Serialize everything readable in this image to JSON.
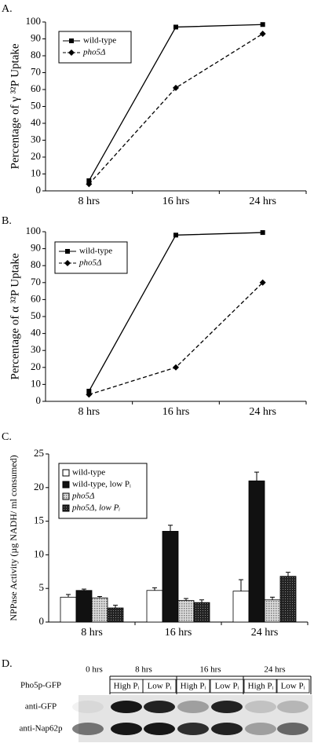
{
  "chart_data": [
    {
      "type": "line",
      "title": "A.",
      "y_label": "Percentage of γ ³²P Uptake",
      "categories": [
        "8 hrs",
        "16 hrs",
        "24 hrs"
      ],
      "series": [
        {
          "name": "wild-type",
          "color": "#000000",
          "marker": "square",
          "dashed": false,
          "values": [
            6,
            97,
            98.5
          ]
        },
        {
          "name": "pho5Δ",
          "color": "#000000",
          "marker": "diamond",
          "dashed": true,
          "italic": true,
          "values": [
            4,
            61,
            93
          ]
        }
      ],
      "ylim": [
        0,
        100
      ],
      "yticks": [
        0,
        10,
        20,
        30,
        40,
        50,
        60,
        70,
        80,
        90,
        100
      ],
      "grid": false,
      "legend": "upper left"
    },
    {
      "type": "line",
      "title": "B.",
      "y_label": "Percentage of α ³²P Uptake",
      "categories": [
        "8 hrs",
        "16 hrs",
        "24 hrs"
      ],
      "series": [
        {
          "name": "wild-type",
          "color": "#000000",
          "marker": "square",
          "dashed": false,
          "values": [
            6,
            98,
            99.5
          ]
        },
        {
          "name": "pho5Δ",
          "color": "#000000",
          "marker": "diamond",
          "dashed": true,
          "italic": true,
          "values": [
            4,
            20,
            70
          ]
        }
      ],
      "ylim": [
        0,
        100
      ],
      "yticks": [
        0,
        10,
        20,
        30,
        40,
        50,
        60,
        70,
        80,
        90,
        100
      ],
      "grid": false,
      "legend": "upper left"
    },
    {
      "type": "bar",
      "title": "C.",
      "y_label": "NPPase Activity (µg NADH/ ml consumed)",
      "categories": [
        "8 hrs",
        "16 hrs",
        "24 hrs"
      ],
      "series": [
        {
          "name": "wild-type",
          "color": "#ffffff",
          "values": [
            3.7,
            4.7,
            4.6
          ],
          "errors": [
            0.4,
            0.4,
            1.7
          ]
        },
        {
          "name": "wild-type, low Pᵢ",
          "color": "#111111",
          "values": [
            4.7,
            13.5,
            21
          ],
          "errors": [
            0.2,
            0.9,
            1.3
          ]
        },
        {
          "name": "pho5Δ",
          "color": "#bbbbbb",
          "italic": true,
          "values": [
            3.6,
            3.2,
            3.3
          ],
          "errors": [
            0.2,
            0.3,
            0.4
          ]
        },
        {
          "name": "pho5Δ, low Pᵢ",
          "color": "#333333",
          "italic": true,
          "values": [
            2.1,
            2.9,
            6.8
          ],
          "errors": [
            0.4,
            0.4,
            0.6
          ]
        }
      ],
      "ylim": [
        0,
        25
      ],
      "yticks": [
        0,
        5,
        10,
        15,
        20,
        25
      ],
      "grid": false,
      "legend": "upper left"
    }
  ],
  "blot": {
    "title": "D.",
    "timepoints": [
      "0 hrs",
      "8 hrs",
      "16 hrs",
      "24 hrs"
    ],
    "construct": "Pho5p-GFP",
    "conditions": [
      "High Pᵢ",
      "Low Pᵢ",
      "High Pᵢ",
      "Low Pᵢ",
      "High Pᵢ",
      "Low Pᵢ"
    ],
    "rows": [
      "anti-GFP",
      "anti-Nap62p"
    ]
  }
}
